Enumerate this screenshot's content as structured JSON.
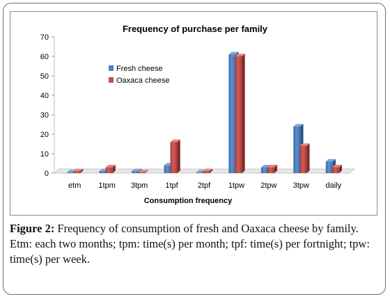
{
  "caption": {
    "label": "Figure 2:",
    "text": "Frequency of consumption of fresh and Oaxaca cheese by family. Etm: each two months; tpm: time(s) per month; tpf: time(s) per fortnight; tpw: time(s) per week."
  },
  "chart_data": {
    "type": "bar",
    "title": "Frequency of purchase per family",
    "xlabel": "Consumption frequency",
    "ylabel": "",
    "ylim": [
      0,
      70
    ],
    "yticks": [
      "0",
      "10",
      "20",
      "30",
      "40",
      "50",
      "60",
      "70"
    ],
    "categories": [
      "etm",
      "1tpm",
      "3tpm",
      "1tpf",
      "2tpf",
      "1tpw",
      "2tpw",
      "3tpw",
      "daily"
    ],
    "series": [
      {
        "name": "Fresh cheese",
        "color": "#4f81bd",
        "values": [
          0,
          1,
          1,
          4,
          0,
          61,
          3,
          24,
          6
        ]
      },
      {
        "name": "Oaxaca cheese",
        "color": "#c0504d",
        "values": [
          1,
          3,
          0,
          16,
          1,
          60,
          3,
          14,
          3
        ]
      }
    ],
    "grid": false,
    "legend_position": "upper-left"
  }
}
